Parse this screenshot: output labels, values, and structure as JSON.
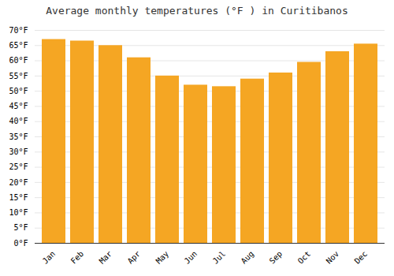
{
  "chart_data": {
    "type": "bar",
    "title": "Average monthly temperatures (°F ) in Curitibanos",
    "categories": [
      "Jan",
      "Feb",
      "Mar",
      "Apr",
      "May",
      "Jun",
      "Jul",
      "Aug",
      "Sep",
      "Oct",
      "Nov",
      "Dec"
    ],
    "values": [
      67,
      66.5,
      65,
      61,
      55,
      52,
      51.5,
      54,
      56,
      59.5,
      63,
      65.5
    ],
    "color": "#F5A623",
    "ylim": [
      0,
      70
    ],
    "yticks": [
      {
        "value": 0,
        "label": "0°F"
      },
      {
        "value": 5,
        "label": "5°F"
      },
      {
        "value": 10,
        "label": "10°F"
      },
      {
        "value": 15,
        "label": "15°F"
      },
      {
        "value": 20,
        "label": "20°F"
      },
      {
        "value": 25,
        "label": "25°F"
      },
      {
        "value": 30,
        "label": "30°F"
      },
      {
        "value": 35,
        "label": "35°F"
      },
      {
        "value": 40,
        "label": "40°F"
      },
      {
        "value": 45,
        "label": "45°F"
      },
      {
        "value": 50,
        "label": "50°F"
      },
      {
        "value": 55,
        "label": "55°F"
      },
      {
        "value": 60,
        "label": "60°F"
      },
      {
        "value": 65,
        "label": "65°F"
      },
      {
        "value": 70,
        "label": "70°F"
      }
    ],
    "grid": true
  }
}
